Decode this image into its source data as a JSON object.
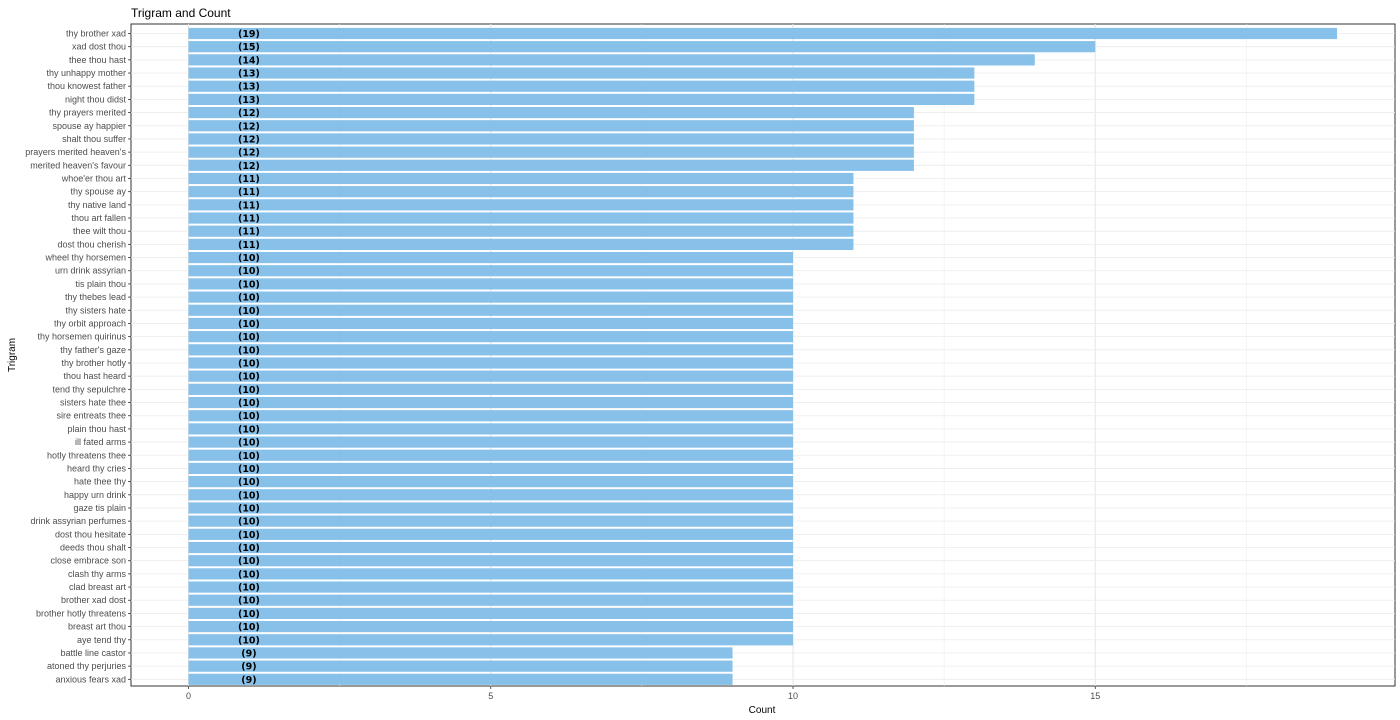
{
  "chart_data": {
    "type": "bar",
    "orientation": "horizontal",
    "title": "Trigram and Count",
    "xlabel": "Count",
    "ylabel": "Trigram",
    "xlim": [
      -1.9,
      19.9
    ],
    "xticks": [
      0,
      5,
      10,
      15
    ],
    "grid": true,
    "bar_color": "#87c1e9",
    "categories": [
      "thy brother xad",
      "xad dost thou",
      "thee thou hast",
      "thy unhappy mother",
      "thou knowest father",
      "night thou didst",
      "thy prayers merited",
      "spouse ay happier",
      "shalt thou suffer",
      "prayers merited heaven's",
      "merited heaven's favour",
      "whoe'er thou art",
      "thy spouse ay",
      "thy native land",
      "thou art fallen",
      "thee wilt thou",
      "dost thou cherish",
      "wheel thy horsemen",
      "urn drink assyrian",
      "tis plain thou",
      "thy thebes lead",
      "thy sisters hate",
      "thy orbit approach",
      "thy horsemen quirinus",
      "thy father's gaze",
      "thy brother hotly",
      "thou hast heard",
      "tend thy sepulchre",
      "sisters hate thee",
      "sire entreats thee",
      "plain thou hast",
      "ill fated arms",
      "hotly threatens thee",
      "heard thy cries",
      "hate thee thy",
      "happy urn drink",
      "gaze tis plain",
      "drink assyrian perfumes",
      "dost thou hesitate",
      "deeds thou shalt",
      "close embrace son",
      "clash thy arms",
      "clad breast art",
      "brother xad dost",
      "brother hotly threatens",
      "breast art thou",
      "aye tend thy",
      "battle line castor",
      "atoned thy perjuries",
      "anxious fears xad"
    ],
    "values": [
      19,
      15,
      14,
      13,
      13,
      13,
      12,
      12,
      12,
      12,
      12,
      11,
      11,
      11,
      11,
      11,
      11,
      10,
      10,
      10,
      10,
      10,
      10,
      10,
      10,
      10,
      10,
      10,
      10,
      10,
      10,
      10,
      10,
      10,
      10,
      10,
      10,
      10,
      10,
      10,
      10,
      10,
      10,
      10,
      10,
      10,
      10,
      9,
      9,
      9
    ],
    "data_labels": [
      "(19)",
      "(15)",
      "(14)",
      "(13)",
      "(13)",
      "(13)",
      "(12)",
      "(12)",
      "(12)",
      "(12)",
      "(12)",
      "(11)",
      "(11)",
      "(11)",
      "(11)",
      "(11)",
      "(11)",
      "(10)",
      "(10)",
      "(10)",
      "(10)",
      "(10)",
      "(10)",
      "(10)",
      "(10)",
      "(10)",
      "(10)",
      "(10)",
      "(10)",
      "(10)",
      "(10)",
      "(10)",
      "(10)",
      "(10)",
      "(10)",
      "(10)",
      "(10)",
      "(10)",
      "(10)",
      "(10)",
      "(10)",
      "(10)",
      "(10)",
      "(10)",
      "(10)",
      "(10)",
      "(10)",
      "(9)",
      "(9)",
      "(9)"
    ]
  }
}
